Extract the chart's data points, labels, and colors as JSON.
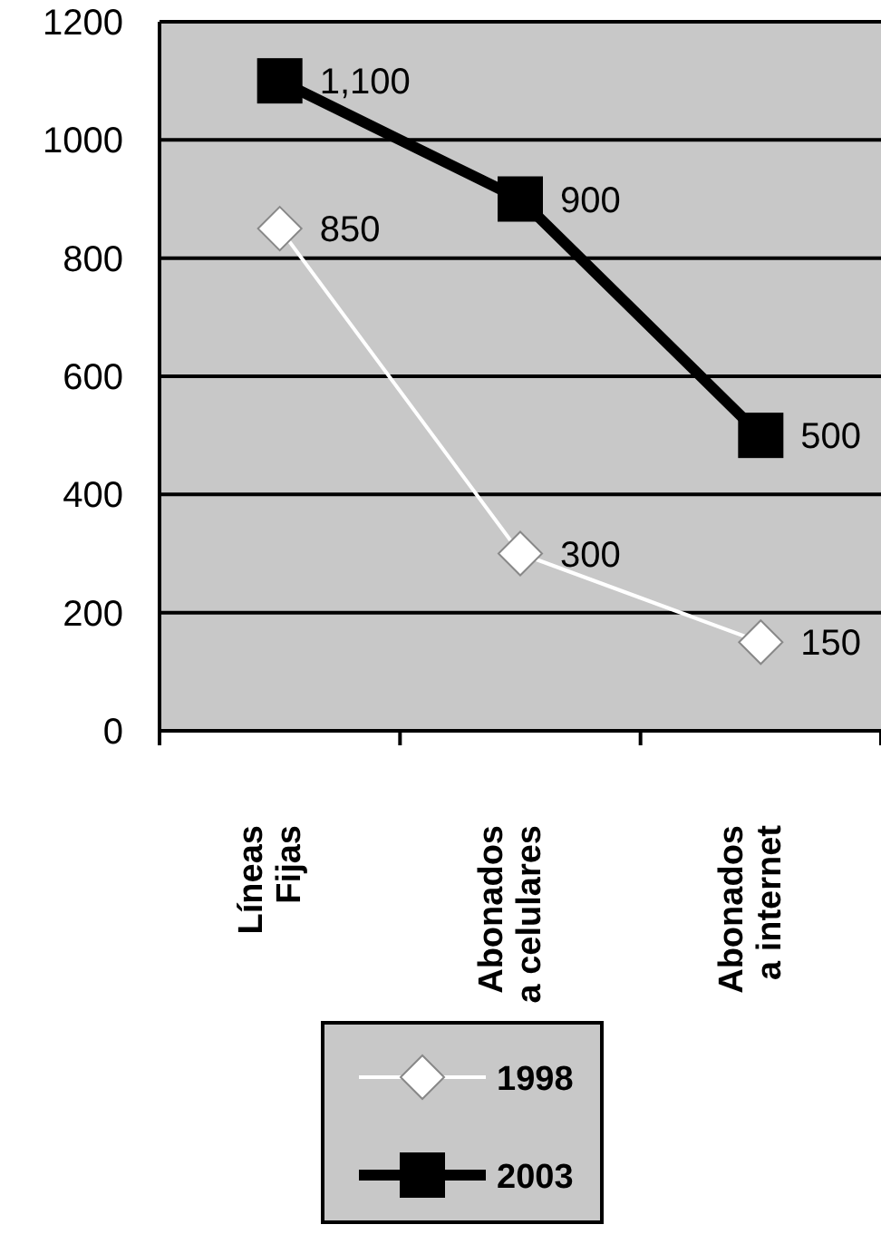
{
  "chart_data": {
    "type": "line",
    "categories": [
      "Líneas Fijas",
      "Abonados a celulares",
      "Abonados a internet"
    ],
    "series": [
      {
        "name": "1998",
        "color": "#ffffff",
        "marker": "diamond",
        "values": [
          850,
          300,
          150
        ],
        "value_labels": [
          "850",
          "300",
          "150"
        ]
      },
      {
        "name": "2003",
        "color": "#000000",
        "marker": "square",
        "values": [
          1100,
          900,
          500
        ],
        "value_labels": [
          "1,100",
          "900",
          "500"
        ]
      }
    ],
    "ylim": [
      0,
      1200
    ],
    "yticks": [
      0,
      200,
      400,
      600,
      800,
      1000,
      1200
    ],
    "grid": "y",
    "legend": "bottom"
  }
}
